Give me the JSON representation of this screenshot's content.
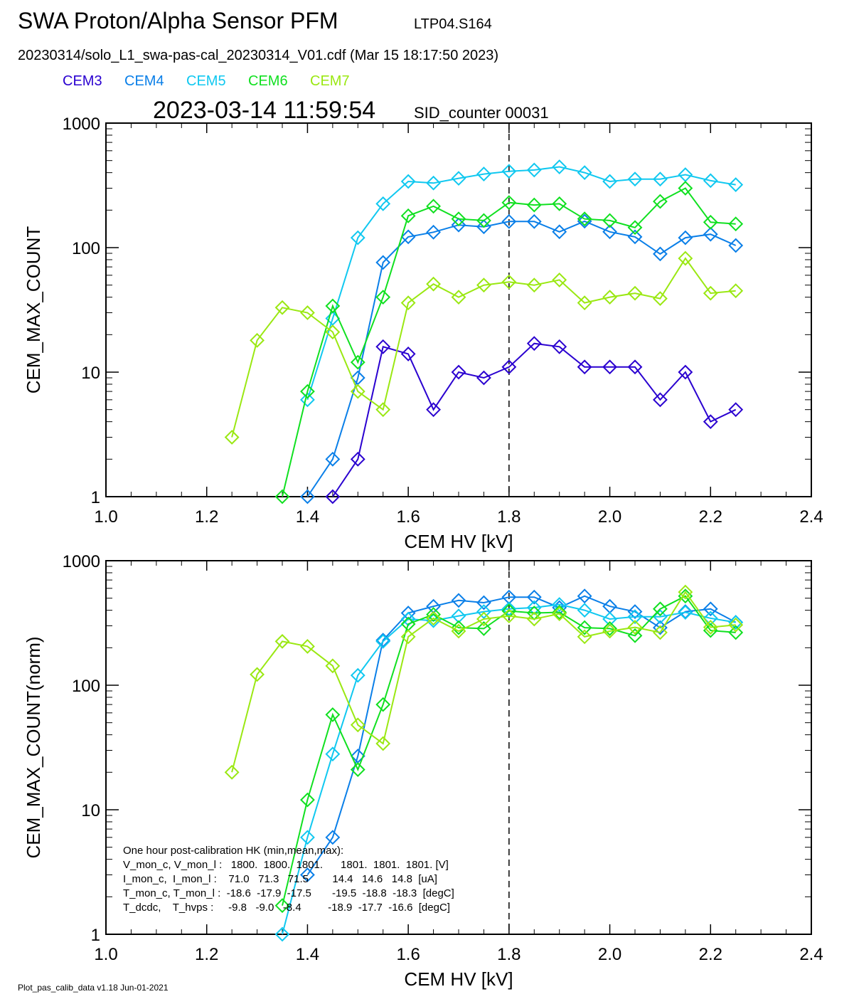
{
  "header": {
    "title": "SWA Proton/Alpha Sensor PFM",
    "tag": "LTP04.S164",
    "file": "20230314/solo_L1_swa-pas-cal_20230314_V01.cdf  (Mar 15 18:17:50 2023)",
    "timestamp": "2023-03-14 11:59:54",
    "sid": "SID_counter 00031"
  },
  "footer": "Plot_pas_calib_data v1.18 Jun-01-2021",
  "chart_data": [
    {
      "type": "line",
      "x_label": "CEM HV [kV]",
      "y_label": "CEM_MAX_COUNT",
      "log_y": true,
      "vline": 1.8,
      "x": [
        1.25,
        1.3,
        1.35,
        1.4,
        1.45,
        1.5,
        1.55,
        1.6,
        1.65,
        1.7,
        1.75,
        1.8,
        1.85,
        1.9,
        1.95,
        2.0,
        2.05,
        2.1,
        2.15,
        2.2,
        2.25
      ],
      "xlim": [
        1.0,
        2.4
      ],
      "xticks": [
        {
          "value": 1.0,
          "label": "1.0"
        },
        1.2,
        1.4,
        1.6,
        1.8,
        {
          "value": 2.0,
          "label": "2.0"
        },
        2.2,
        2.4
      ],
      "ylim": [
        1,
        1000
      ],
      "yticks": [
        1,
        10,
        100,
        1000
      ],
      "series": [
        {
          "name": "CEM3",
          "color": "#2a00d0",
          "values": [
            null,
            null,
            null,
            null,
            1,
            2,
            16,
            14,
            5,
            10,
            9,
            11,
            17,
            16,
            11,
            11,
            11,
            6,
            10,
            4,
            5
          ]
        },
        {
          "name": "CEM4",
          "color": "#0a7fe8",
          "values": [
            null,
            null,
            null,
            1,
            2,
            9,
            76,
            122,
            133,
            152,
            147,
            162,
            162,
            134,
            163,
            134,
            122,
            89,
            120,
            128,
            104
          ]
        },
        {
          "name": "CEM5",
          "color": "#10c8f0",
          "values": [
            null,
            null,
            null,
            6,
            27,
            120,
            225,
            340,
            330,
            360,
            390,
            410,
            420,
            445,
            400,
            340,
            355,
            355,
            385,
            345,
            320
          ]
        },
        {
          "name": "CEM6",
          "color": "#10e020",
          "values": [
            null,
            null,
            1,
            7,
            34,
            12,
            40,
            180,
            215,
            170,
            165,
            230,
            220,
            225,
            170,
            165,
            145,
            235,
            300,
            160,
            155
          ]
        },
        {
          "name": "CEM7",
          "color": "#9ae812",
          "values": [
            3,
            18,
            33,
            30,
            21,
            7,
            5,
            36,
            51,
            40,
            50,
            53,
            50,
            55,
            36,
            40,
            43,
            39,
            82,
            43,
            45
          ]
        }
      ]
    },
    {
      "type": "line",
      "x_label": "CEM HV [kV]",
      "y_label": "CEM_MAX_COUNT(norm)",
      "log_y": true,
      "vline": 1.8,
      "x": [
        1.25,
        1.3,
        1.35,
        1.4,
        1.45,
        1.5,
        1.55,
        1.6,
        1.65,
        1.7,
        1.75,
        1.8,
        1.85,
        1.9,
        1.95,
        2.0,
        2.05,
        2.1,
        2.15,
        2.2,
        2.25
      ],
      "xlim": [
        1.0,
        2.4
      ],
      "xticks": [
        {
          "value": 1.0,
          "label": "1.0"
        },
        1.2,
        1.4,
        1.6,
        1.8,
        {
          "value": 2.0,
          "label": "2.0"
        },
        2.2,
        2.4
      ],
      "ylim": [
        1,
        1000
      ],
      "yticks": [
        1,
        10,
        100,
        1000
      ],
      "annotation_lines": [
        "One hour post-calibration HK (min,mean,max):",
        "V_mon_c, V_mon_l :   1800.  1800.  1801.      1801.  1801.  1801. [V]",
        "I_mon_c,  I_mon_l :    71.0   71.3   71.5        14.4   14.6   14.8  [uA]",
        "T_mon_c, T_mon_l :  -18.6  -17.9  -17.5       -19.5  -18.8  -18.3  [degC]",
        "T_dcdc,    T_hvps :     -9.8   -9.0   -8.4         -18.9  -17.7  -16.6  [degC]"
      ],
      "series": [
        {
          "color": "#0a7fe8",
          "values": [
            null,
            null,
            null,
            3,
            6,
            27,
            230,
            380,
            430,
            480,
            460,
            510,
            510,
            420,
            520,
            430,
            390,
            290,
            390,
            410,
            320
          ]
        },
        {
          "color": "#10c8f0",
          "values": [
            null,
            null,
            1,
            6,
            28,
            120,
            225,
            340,
            330,
            360,
            390,
            410,
            420,
            445,
            400,
            340,
            355,
            355,
            385,
            345,
            320
          ]
        },
        {
          "color": "#10e020",
          "values": [
            null,
            null,
            1.7,
            12,
            58,
            21,
            70,
            310,
            370,
            290,
            285,
            395,
            380,
            385,
            290,
            285,
            250,
            410,
            520,
            275,
            265
          ]
        },
        {
          "color": "#9ae812",
          "values": [
            20,
            122,
            225,
            205,
            143,
            48,
            34,
            245,
            345,
            272,
            340,
            360,
            340,
            375,
            245,
            272,
            292,
            265,
            560,
            292,
            305
          ]
        }
      ]
    }
  ]
}
